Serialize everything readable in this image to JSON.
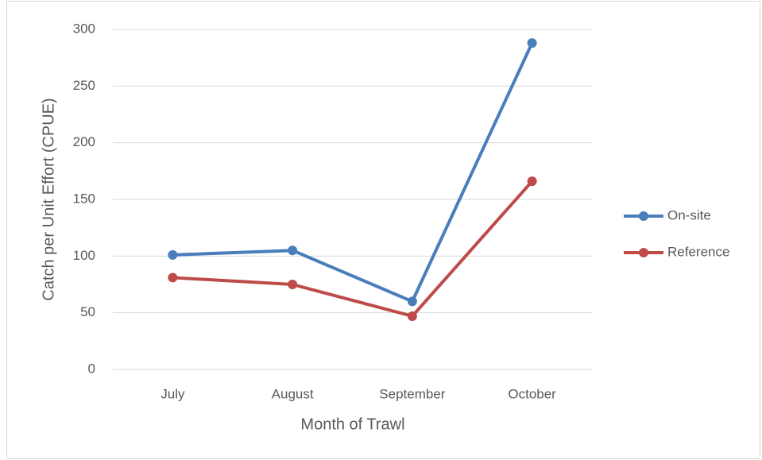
{
  "chart_data": {
    "type": "line",
    "x_label": "Month of Trawl",
    "y_label": "Catch per Unit Effort (CPUE)",
    "categories": [
      "July",
      "August",
      "September",
      "October"
    ],
    "series": [
      {
        "name": "On-site",
        "color": "#4a7ebb",
        "values": [
          101,
          105,
          60,
          288
        ]
      },
      {
        "name": "Reference",
        "color": "#be4b48",
        "values": [
          81,
          75,
          47,
          166
        ]
      }
    ],
    "ylim": [
      0,
      300
    ],
    "yticks": [
      0,
      50,
      100,
      150,
      200,
      250,
      300
    ],
    "grid": true,
    "legend": "right"
  }
}
